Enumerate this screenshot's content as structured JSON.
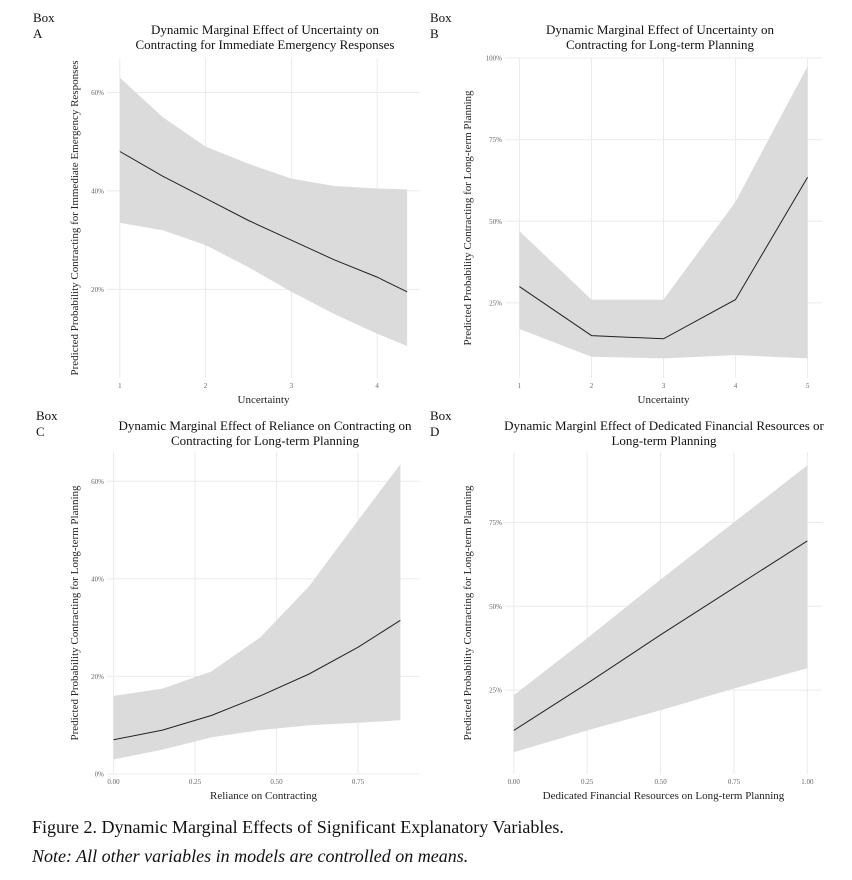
{
  "figure": {
    "caption": "Figure 2. Dynamic Marginal Effects of Significant Explanatory Variables.",
    "note": "Note: All other variables in models are controlled on means."
  },
  "chart_data": [
    {
      "box": "Box A",
      "type": "line",
      "title": "Dynamic Marginal Effect of Uncertainty on Contracting for Immediate Emergency Responses",
      "title_lines": [
        "Dynamic Marginal Effect of Uncertainty on",
        "Contracting for Immediate Emergency Responses"
      ],
      "xlabel": "Uncertainty",
      "ylabel": "Predicted Probability Contracting for Immediate Emergency Responses",
      "xlim": [
        0.85,
        4.5
      ],
      "ylim": [
        0.02,
        0.67
      ],
      "xticks": [
        1,
        2,
        3,
        4
      ],
      "xticklabels": [
        "1",
        "2",
        "3",
        "4"
      ],
      "yticks": [
        0.2,
        0.4,
        0.6
      ],
      "yticklabels": [
        "20%",
        "40%",
        "60%"
      ],
      "x": [
        1,
        1.5,
        2,
        2.5,
        3,
        3.5,
        4,
        4.35
      ],
      "y": [
        0.48,
        0.43,
        0.385,
        0.34,
        0.3,
        0.26,
        0.225,
        0.195
      ],
      "lower": [
        0.335,
        0.32,
        0.29,
        0.245,
        0.195,
        0.15,
        0.11,
        0.085
      ],
      "upper": [
        0.63,
        0.55,
        0.49,
        0.455,
        0.425,
        0.41,
        0.405,
        0.403
      ],
      "grid": true,
      "legend": "none"
    },
    {
      "box": "Box B",
      "type": "line",
      "title": "Dynamic Marginal Effect of Uncertainty on Contracting for Long-term Planning",
      "title_lines": [
        "Dynamic Marginal Effect of Uncertainty on",
        "Contracting for Long-term Planning"
      ],
      "xlabel": "Uncertainty",
      "ylabel": "Predicted Probability Contracting for Long-term Planning",
      "xlim": [
        0.8,
        5.2
      ],
      "ylim": [
        0.02,
        1.0
      ],
      "xticks": [
        1,
        2,
        3,
        4,
        5
      ],
      "xticklabels": [
        "1",
        "2",
        "3",
        "4",
        "5"
      ],
      "yticks": [
        0.25,
        0.5,
        0.75,
        1.0
      ],
      "yticklabels": [
        "25%",
        "50%",
        "75%",
        "100%"
      ],
      "x": [
        1,
        2,
        3,
        4,
        5
      ],
      "y": [
        0.3,
        0.15,
        0.14,
        0.26,
        0.635
      ],
      "lower": [
        0.17,
        0.085,
        0.08,
        0.09,
        0.08
      ],
      "upper": [
        0.47,
        0.26,
        0.26,
        0.56,
        0.975
      ],
      "grid": true,
      "legend": "none"
    },
    {
      "box": "Box C",
      "type": "line",
      "title": "Dynamic Marginal Effect of Reliance on Contracting on Contracting for Long-term Planning",
      "title_lines": [
        "Dynamic Marginal Effect of Reliance on Contracting on",
        "Contracting for Long-term Planning"
      ],
      "xlabel": "Reliance on Contracting",
      "ylabel": "Predicted Probability Contracting for Long-term Planning",
      "xlim": [
        -0.02,
        0.94
      ],
      "ylim": [
        0.0,
        0.66
      ],
      "xticks": [
        0,
        0.25,
        0.5,
        0.75
      ],
      "xticklabels": [
        "0.00",
        "0.25",
        "0.50",
        "0.75"
      ],
      "yticks": [
        0,
        0.2,
        0.4,
        0.6
      ],
      "yticklabels": [
        "0%",
        "20%",
        "40%",
        "60%"
      ],
      "x": [
        0.0,
        0.15,
        0.3,
        0.45,
        0.6,
        0.75,
        0.88
      ],
      "y": [
        0.07,
        0.09,
        0.12,
        0.16,
        0.205,
        0.26,
        0.315
      ],
      "lower": [
        0.03,
        0.05,
        0.075,
        0.09,
        0.1,
        0.105,
        0.11
      ],
      "upper": [
        0.16,
        0.175,
        0.21,
        0.28,
        0.385,
        0.52,
        0.635
      ],
      "grid": true,
      "legend": "none"
    },
    {
      "box": "Box D",
      "type": "line",
      "title": "Dynamic Marginl Effect of Dedicated Financial Resources or Long-term Planning",
      "title_lines": [
        "Dynamic Marginl Effect of Dedicated Financial Resources or",
        "Long-term Planning"
      ],
      "xlabel": "Dedicated Financial Resources on Long-term Planning",
      "ylabel": "Predicted Probability Contracting for Long-term Planning",
      "xlim": [
        -0.03,
        1.05
      ],
      "ylim": [
        0.0,
        0.96
      ],
      "xticks": [
        0,
        0.25,
        0.5,
        0.75,
        1.0
      ],
      "xticklabels": [
        "0.00",
        "0.25",
        "0.50",
        "0.75",
        "1.00"
      ],
      "yticks": [
        0.25,
        0.5,
        0.75
      ],
      "yticklabels": [
        "25%",
        "50%",
        "75%"
      ],
      "x": [
        0.0,
        0.25,
        0.5,
        0.75,
        1.0
      ],
      "y": [
        0.13,
        0.27,
        0.415,
        0.555,
        0.695
      ],
      "lower": [
        0.065,
        0.13,
        0.19,
        0.255,
        0.315
      ],
      "upper": [
        0.235,
        0.405,
        0.58,
        0.75,
        0.92
      ],
      "grid": true,
      "legend": "none"
    }
  ]
}
